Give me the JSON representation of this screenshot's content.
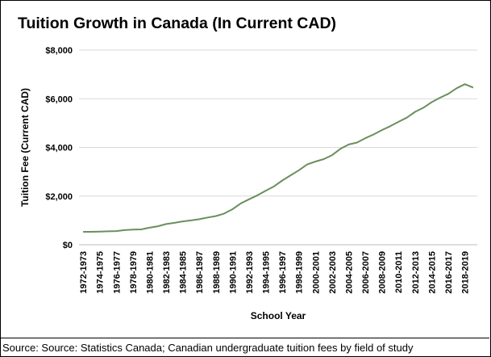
{
  "chart_data": {
    "type": "line",
    "title": "Tuition Growth in Canada (In Current CAD)",
    "xlabel": "School Year",
    "ylabel": "Tuition Fee (Current CAD)",
    "ylim": [
      0,
      8000
    ],
    "yticks": [
      0,
      2000,
      4000,
      6000,
      8000
    ],
    "ytick_labels": [
      "$0",
      "$2,000",
      "$4,000",
      "$6,000",
      "$8,000"
    ],
    "grid": true,
    "line_color": "#6a8f5e",
    "x": [
      "1972-1973",
      "1973-1974",
      "1974-1975",
      "1975-1976",
      "1976-1977",
      "1977-1978",
      "1978-1979",
      "1979-1980",
      "1980-1981",
      "1981-1982",
      "1982-1983",
      "1983-1984",
      "1984-1985",
      "1985-1986",
      "1986-1987",
      "1987-1988",
      "1988-1989",
      "1989-1990",
      "1990-1991",
      "1991-1992",
      "1992-1993",
      "1993-1994",
      "1994-1995",
      "1995-1996",
      "1996-1997",
      "1997-1998",
      "1998-1999",
      "1999-2000",
      "2000-2001",
      "2001-2002",
      "2002-2003",
      "2003-2004",
      "2004-2005",
      "2005-2006",
      "2006-2007",
      "2007-2008",
      "2008-2009",
      "2009-2010",
      "2010-2011",
      "2011-2012",
      "2012-2013",
      "2013-2014",
      "2014-2015",
      "2015-2016",
      "2016-2017",
      "2017-2018",
      "2018-2019",
      "2019-2020"
    ],
    "xtick_labels": [
      "1972-1973",
      "1974-1975",
      "1976-1977",
      "1978-1979",
      "1980-1981",
      "1982-1983",
      "1984-1985",
      "1986-1987",
      "1988-1989",
      "1990-1991",
      "1992-1993",
      "1994-1995",
      "1996-1997",
      "1998-1999",
      "2000-2001",
      "2002-2003",
      "2004-2005",
      "2006-2007",
      "2008-2009",
      "2010-2011",
      "2012-2013",
      "2014-2015",
      "2016-2017",
      "2018-2019"
    ],
    "series": [
      {
        "name": "Tuition Fee",
        "values": [
          530,
          530,
          540,
          550,
          560,
          600,
          620,
          630,
          700,
          760,
          850,
          900,
          960,
          1000,
          1050,
          1120,
          1180,
          1280,
          1460,
          1700,
          1870,
          2030,
          2220,
          2400,
          2640,
          2850,
          3060,
          3300,
          3420,
          3520,
          3680,
          3940,
          4120,
          4200,
          4380,
          4530,
          4710,
          4870,
          5050,
          5220,
          5460,
          5630,
          5860,
          6040,
          6200,
          6430,
          6600,
          6460
        ]
      }
    ]
  },
  "source": "Source: Source: Statistics Canada;  Canadian undergraduate tuition fees by field of study"
}
